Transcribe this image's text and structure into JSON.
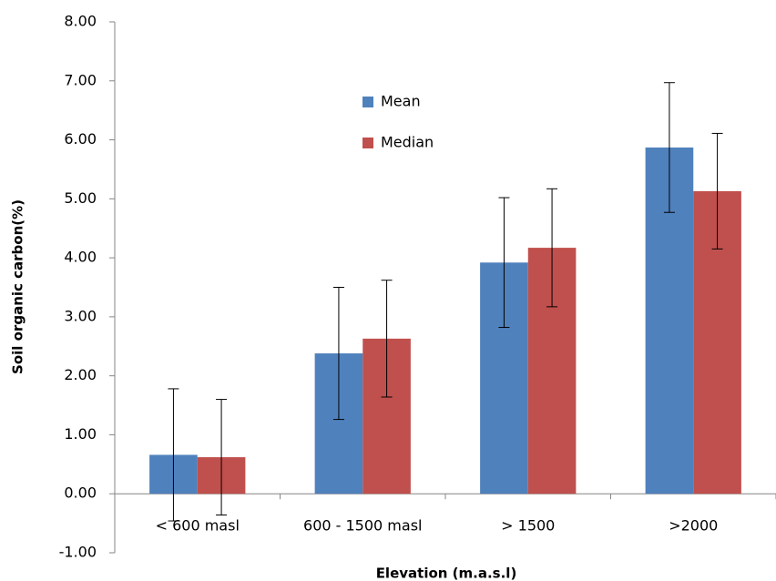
{
  "chart_data": {
    "type": "bar",
    "x_label": "Elevation (m.a.s.l)",
    "y_label": "Soil organic carbon(%)",
    "categories": [
      "< 600 masl",
      "600 - 1500 masl",
      "> 1500",
      ">2000"
    ],
    "series": [
      {
        "name": "Mean",
        "color": "#4f81bd",
        "values": [
          0.66,
          2.38,
          3.92,
          5.87
        ],
        "errors": [
          1.12,
          1.12,
          1.1,
          1.1
        ]
      },
      {
        "name": "Median",
        "color": "#c0504d",
        "values": [
          0.62,
          2.63,
          4.17,
          5.13
        ],
        "errors": [
          0.98,
          0.99,
          1.0,
          0.98
        ]
      }
    ],
    "ylim": [
      -1,
      8
    ],
    "yticks": [
      {
        "value": -1,
        "label": "-1.00"
      },
      {
        "value": 0,
        "label": "0.00"
      },
      {
        "value": 1,
        "label": "1.00"
      },
      {
        "value": 2,
        "label": "2.00"
      },
      {
        "value": 3,
        "label": "3.00"
      },
      {
        "value": 4,
        "label": "4.00"
      },
      {
        "value": 5,
        "label": "5.00"
      },
      {
        "value": 6,
        "label": "6.00"
      },
      {
        "value": 7,
        "label": "7.00"
      },
      {
        "value": 8,
        "label": "8.00"
      }
    ],
    "grid": false,
    "legend": "top-center"
  }
}
